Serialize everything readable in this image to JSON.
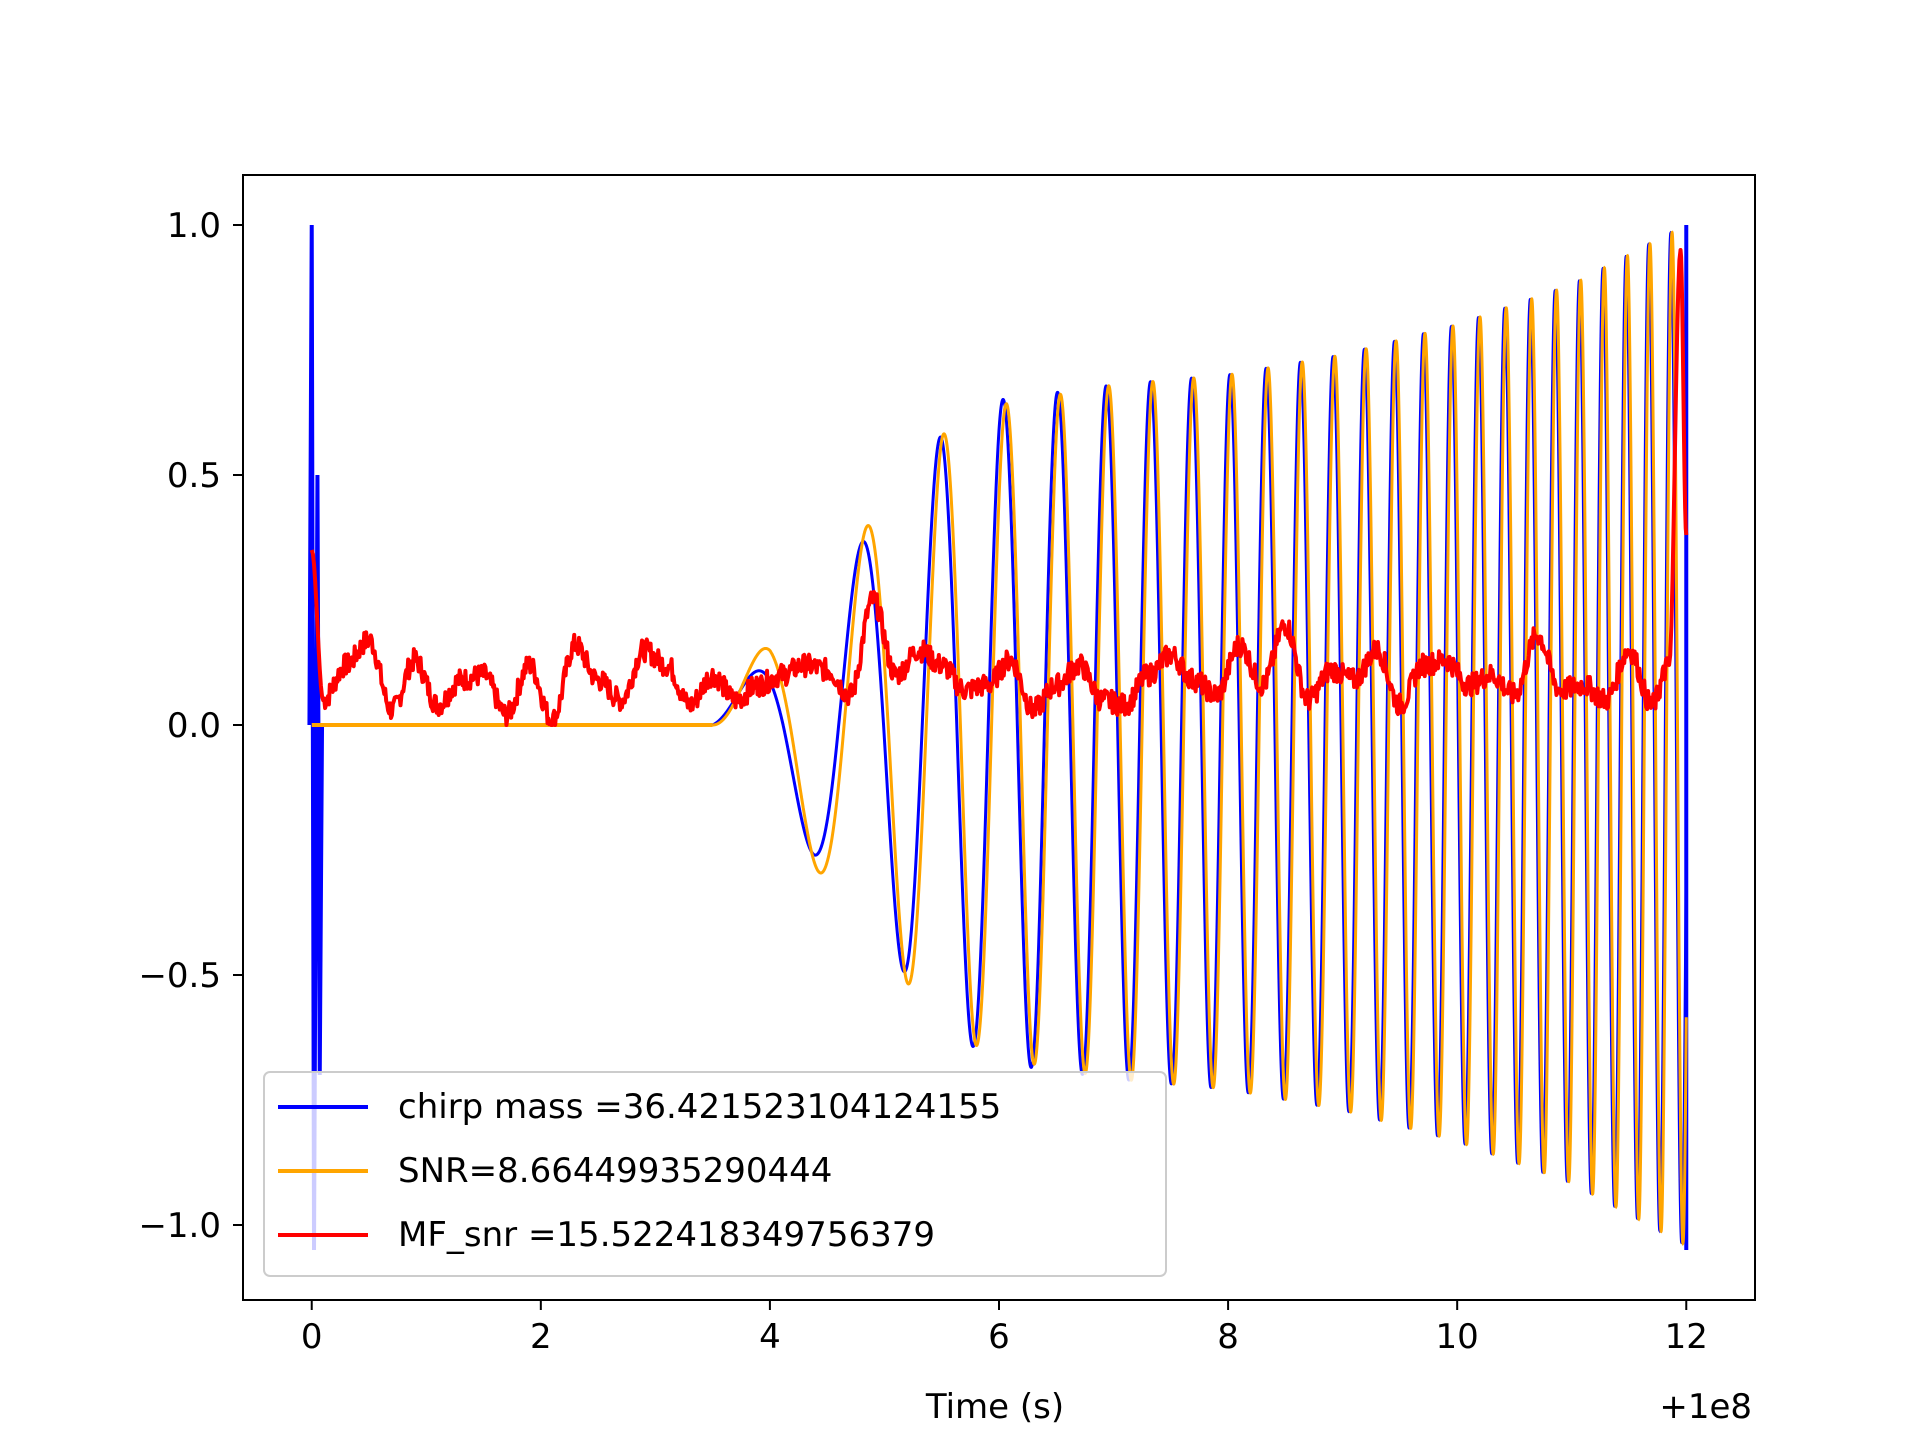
{
  "chart_data": {
    "type": "line",
    "title": "",
    "xlabel": "Time (s)",
    "ylabel": "",
    "x_offset_label": "+1e8",
    "xlim": [
      -0.6,
      12.6
    ],
    "ylim": [
      -1.15,
      1.1
    ],
    "x_ticks": [
      0,
      2,
      4,
      6,
      8,
      10,
      12
    ],
    "x_tick_labels": [
      "0",
      "2",
      "4",
      "6",
      "8",
      "10",
      "12"
    ],
    "y_ticks": [
      1.0,
      0.5,
      0.0,
      -0.5,
      -1.0
    ],
    "y_tick_labels": [
      "1.0",
      "0.5",
      "0.0",
      "−0.5",
      "−1.0"
    ],
    "grid": false,
    "legend_position": "lower-left",
    "series": [
      {
        "name": "chirp mass =36.421523104124155",
        "color": "#0000ff",
        "description": "template chirp waveform, spike at t=0 and oscillating envelope growing from t≈3.5 to t=12",
        "envelope_points": [
          [
            3.5,
            0.0
          ],
          [
            4.0,
            0.15
          ],
          [
            4.5,
            0.28
          ],
          [
            5.0,
            0.42
          ],
          [
            5.5,
            0.58
          ],
          [
            6.0,
            0.65
          ],
          [
            7.0,
            0.68
          ],
          [
            8.0,
            0.7
          ],
          [
            9.0,
            0.74
          ],
          [
            10.0,
            0.8
          ],
          [
            11.0,
            0.88
          ],
          [
            12.0,
            1.0
          ]
        ],
        "spike": {
          "x": 0.0,
          "ymax": 1.0,
          "ymin": -1.05
        }
      },
      {
        "name": "SNR=8.66449935290444",
        "color": "#ffa500",
        "description": "signal waveform, zero until t≈3.5 then oscillating with growing envelope to t=12",
        "envelope_points": [
          [
            3.5,
            0.0
          ],
          [
            4.0,
            0.18
          ],
          [
            4.5,
            0.3
          ],
          [
            5.0,
            0.44
          ],
          [
            5.5,
            0.58
          ],
          [
            6.0,
            0.64
          ],
          [
            7.0,
            0.68
          ],
          [
            8.0,
            0.7
          ],
          [
            9.0,
            0.74
          ],
          [
            10.0,
            0.8
          ],
          [
            11.0,
            0.88
          ],
          [
            12.0,
            1.0
          ]
        ]
      },
      {
        "name": "MF_snr =15.522418349756379",
        "color": "#ff0000",
        "description": "matched filter output, noisy around 0.0–0.2 with peak at end",
        "x": [
          0.0,
          0.1,
          0.3,
          0.5,
          0.7,
          0.9,
          1.1,
          1.3,
          1.5,
          1.7,
          1.9,
          2.1,
          2.3,
          2.5,
          2.7,
          2.9,
          3.1,
          3.3,
          3.5,
          3.7,
          3.9,
          4.1,
          4.3,
          4.5,
          4.7,
          4.9,
          5.1,
          5.3,
          5.5,
          5.7,
          5.9,
          6.1,
          6.3,
          6.5,
          6.7,
          6.9,
          7.1,
          7.3,
          7.5,
          7.7,
          7.9,
          8.1,
          8.3,
          8.5,
          8.7,
          8.9,
          9.1,
          9.3,
          9.5,
          9.7,
          9.9,
          10.1,
          10.3,
          10.5,
          10.7,
          10.9,
          11.1,
          11.3,
          11.5,
          11.7,
          11.85,
          11.95,
          12.0
        ],
        "y": [
          0.35,
          0.05,
          0.12,
          0.17,
          0.03,
          0.13,
          0.04,
          0.09,
          0.1,
          0.02,
          0.12,
          0.01,
          0.16,
          0.09,
          0.05,
          0.15,
          0.12,
          0.04,
          0.1,
          0.05,
          0.08,
          0.1,
          0.12,
          0.11,
          0.06,
          0.25,
          0.1,
          0.15,
          0.12,
          0.07,
          0.08,
          0.13,
          0.03,
          0.08,
          0.12,
          0.05,
          0.04,
          0.1,
          0.14,
          0.09,
          0.06,
          0.16,
          0.08,
          0.2,
          0.05,
          0.11,
          0.09,
          0.15,
          0.04,
          0.12,
          0.13,
          0.08,
          0.1,
          0.06,
          0.18,
          0.07,
          0.08,
          0.05,
          0.15,
          0.04,
          0.12,
          0.95,
          0.38
        ]
      }
    ]
  }
}
